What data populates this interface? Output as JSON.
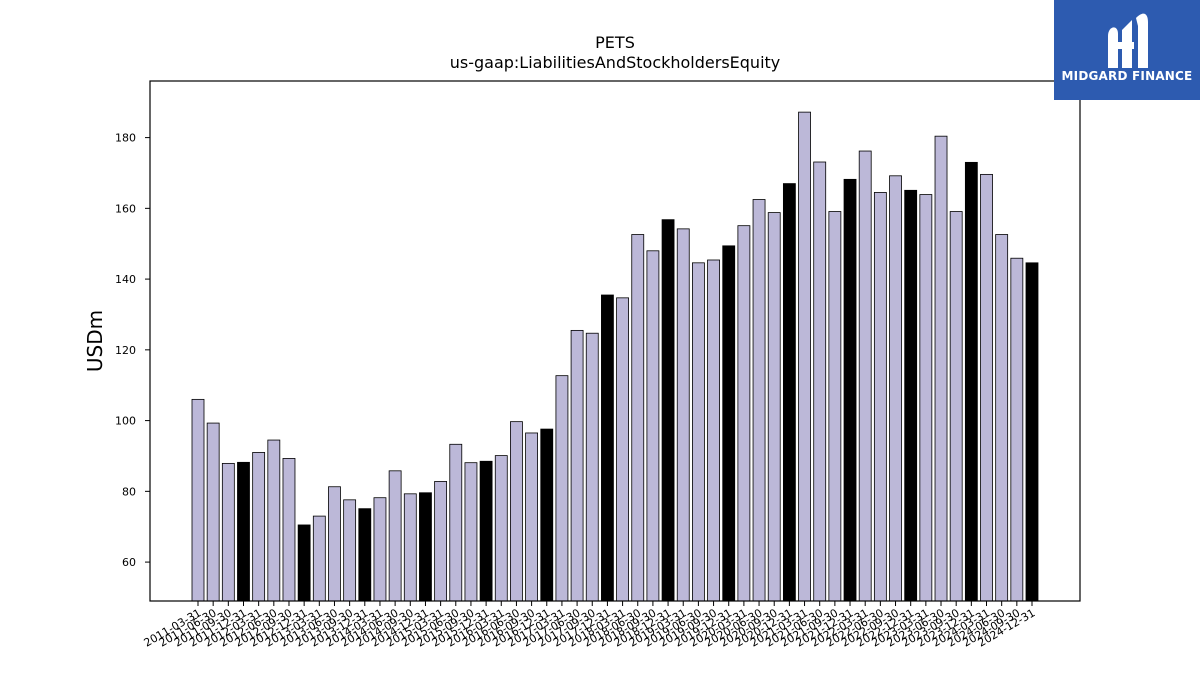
{
  "chart_data": {
    "type": "bar",
    "title": "PETS",
    "subtitle": "us-gaap:LiabilitiesAndStockholdersEquity",
    "ylabel": "USDm",
    "xlabel": "",
    "ylim": [
      49,
      196
    ],
    "yticks": [
      60,
      80,
      100,
      120,
      140,
      160,
      180
    ],
    "grid": false,
    "categories": [
      "2011-03-31",
      "2011-06-30",
      "2011-09-30",
      "2011-12-31",
      "2012-03-31",
      "2012-06-30",
      "2012-09-30",
      "2012-12-31",
      "2013-03-31",
      "2013-06-30",
      "2013-09-30",
      "2013-12-31",
      "2014-03-31",
      "2014-06-30",
      "2014-09-30",
      "2014-12-31",
      "2015-03-31",
      "2015-06-30",
      "2015-09-30",
      "2015-12-31",
      "2016-03-31",
      "2016-06-30",
      "2016-09-30",
      "2016-12-31",
      "2017-03-31",
      "2017-06-30",
      "2017-09-30",
      "2017-12-31",
      "2018-03-31",
      "2018-06-30",
      "2018-09-30",
      "2018-12-31",
      "2019-03-31",
      "2019-06-30",
      "2019-09-30",
      "2019-12-31",
      "2020-03-31",
      "2020-06-30",
      "2020-09-30",
      "2020-12-31",
      "2021-03-31",
      "2021-06-30",
      "2021-09-30",
      "2021-12-31",
      "2022-03-31",
      "2022-06-30",
      "2022-09-30",
      "2022-12-31",
      "2023-03-31",
      "2023-06-30",
      "2023-09-30",
      "2023-12-31",
      "2024-03-31",
      "2024-06-30",
      "2024-09-30",
      "2024-12-31"
    ],
    "values": [
      106.0,
      99.3,
      87.9,
      88.2,
      91.0,
      94.5,
      89.3,
      70.5,
      73.0,
      81.3,
      77.6,
      75.1,
      78.2,
      85.8,
      79.3,
      79.6,
      82.8,
      93.3,
      88.1,
      88.5,
      90.1,
      99.7,
      96.5,
      97.6,
      112.7,
      125.5,
      124.7,
      135.5,
      134.7,
      152.6,
      148.0,
      156.8,
      154.2,
      144.6,
      145.4,
      149.4,
      155.1,
      162.5,
      158.8,
      167.0,
      187.2,
      173.1,
      159.1,
      168.2,
      176.2,
      164.5,
      169.2,
      165.1,
      163.9,
      180.4,
      159.1,
      173.0,
      169.6,
      152.6,
      145.9,
      144.6
    ],
    "colors": {
      "regular": "#bcb8d8",
      "year_end": "#000000"
    }
  },
  "logo": {
    "text": "MIDGARD FINANCE",
    "icon": "midgard-logo-icon"
  }
}
